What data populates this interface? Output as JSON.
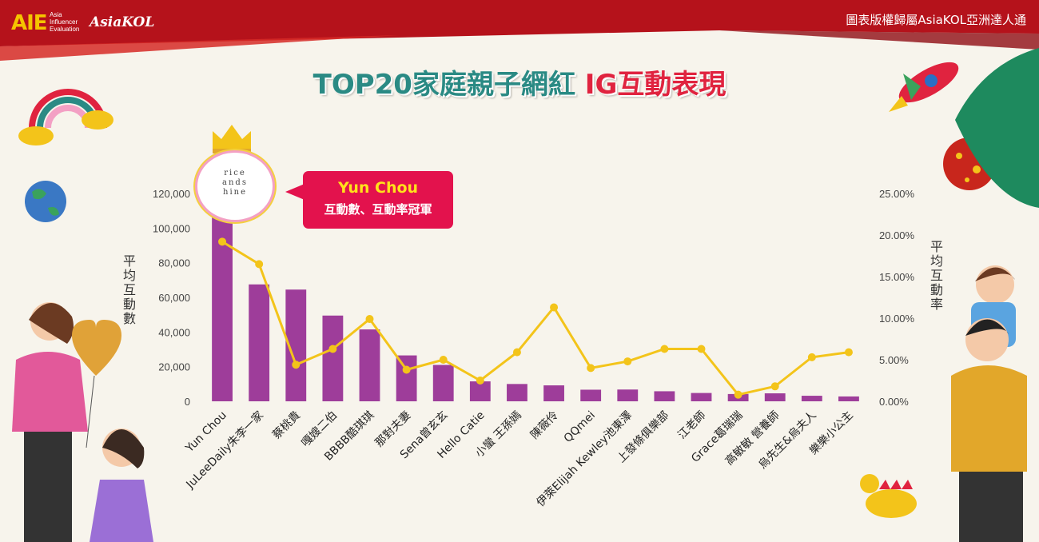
{
  "header": {
    "logo_main": "AIE",
    "logo_sub": [
      "Asia",
      "Influencer",
      "Evaluation"
    ],
    "logo_brand": "AsiaKOL",
    "copyright": "圖表版權歸屬AsiaKOL亞洲達人通"
  },
  "title": {
    "part1": "TOP20家庭親子網紅 ",
    "part2": "IG互動表現"
  },
  "callout": {
    "name": "Yun Chou",
    "text": "互動數、互動率冠軍"
  },
  "avatar": {
    "text": [
      "rice",
      "ands",
      "hine"
    ]
  },
  "colors": {
    "bar": "#9e3d9a",
    "line": "#f3c41a",
    "accent": "#e0233f",
    "title": "#2a8a84"
  },
  "chart_data": {
    "type": "bar",
    "title": "TOP20家庭親子網紅 IG互動表現",
    "ylabel": "平均互動數",
    "y2label": "平均互動率",
    "ylim": [
      0,
      120000
    ],
    "y2lim": [
      0,
      25
    ],
    "yticks": [
      "0",
      "20,000",
      "40,000",
      "60,000",
      "80,000",
      "100,000",
      "120,000"
    ],
    "y2ticks": [
      "0.00%",
      "5.00%",
      "10.00%",
      "15.00%",
      "20.00%",
      "25.00%"
    ],
    "categories": [
      "Yun Chou",
      "JuLeeDaily朱李一家",
      "蔡桃貴",
      "嘎嫂二伯",
      "BBBB酷琪琪",
      "那對夫妻",
      "Sena曾玄玄",
      "Hello Catie",
      "小蠻 王孫嫣",
      "陳薇伶",
      "QQmei",
      "伊萊Elijah Kewley池東澤",
      "上發條俱樂部",
      "江老師",
      "Grace葛瑞瑞",
      "高敏敏 營養師",
      "烏先生&烏夫人",
      "樂樂小公主"
    ],
    "series": [
      {
        "name": "平均互動數",
        "type": "bar",
        "values": [
          108000,
          67500,
          64500,
          49500,
          41500,
          26500,
          21000,
          11500,
          10000,
          9200,
          6700,
          6800,
          5800,
          4800,
          4200,
          4600,
          3200,
          2800
        ]
      },
      {
        "name": "平均互動率",
        "type": "line",
        "values": [
          19.2,
          16.5,
          4.4,
          6.3,
          9.9,
          3.8,
          5.0,
          2.5,
          5.9,
          11.3,
          4.0,
          4.8,
          6.3,
          6.3,
          0.8,
          1.8,
          5.3,
          5.9
        ]
      }
    ],
    "grid": false,
    "legend": "none"
  }
}
